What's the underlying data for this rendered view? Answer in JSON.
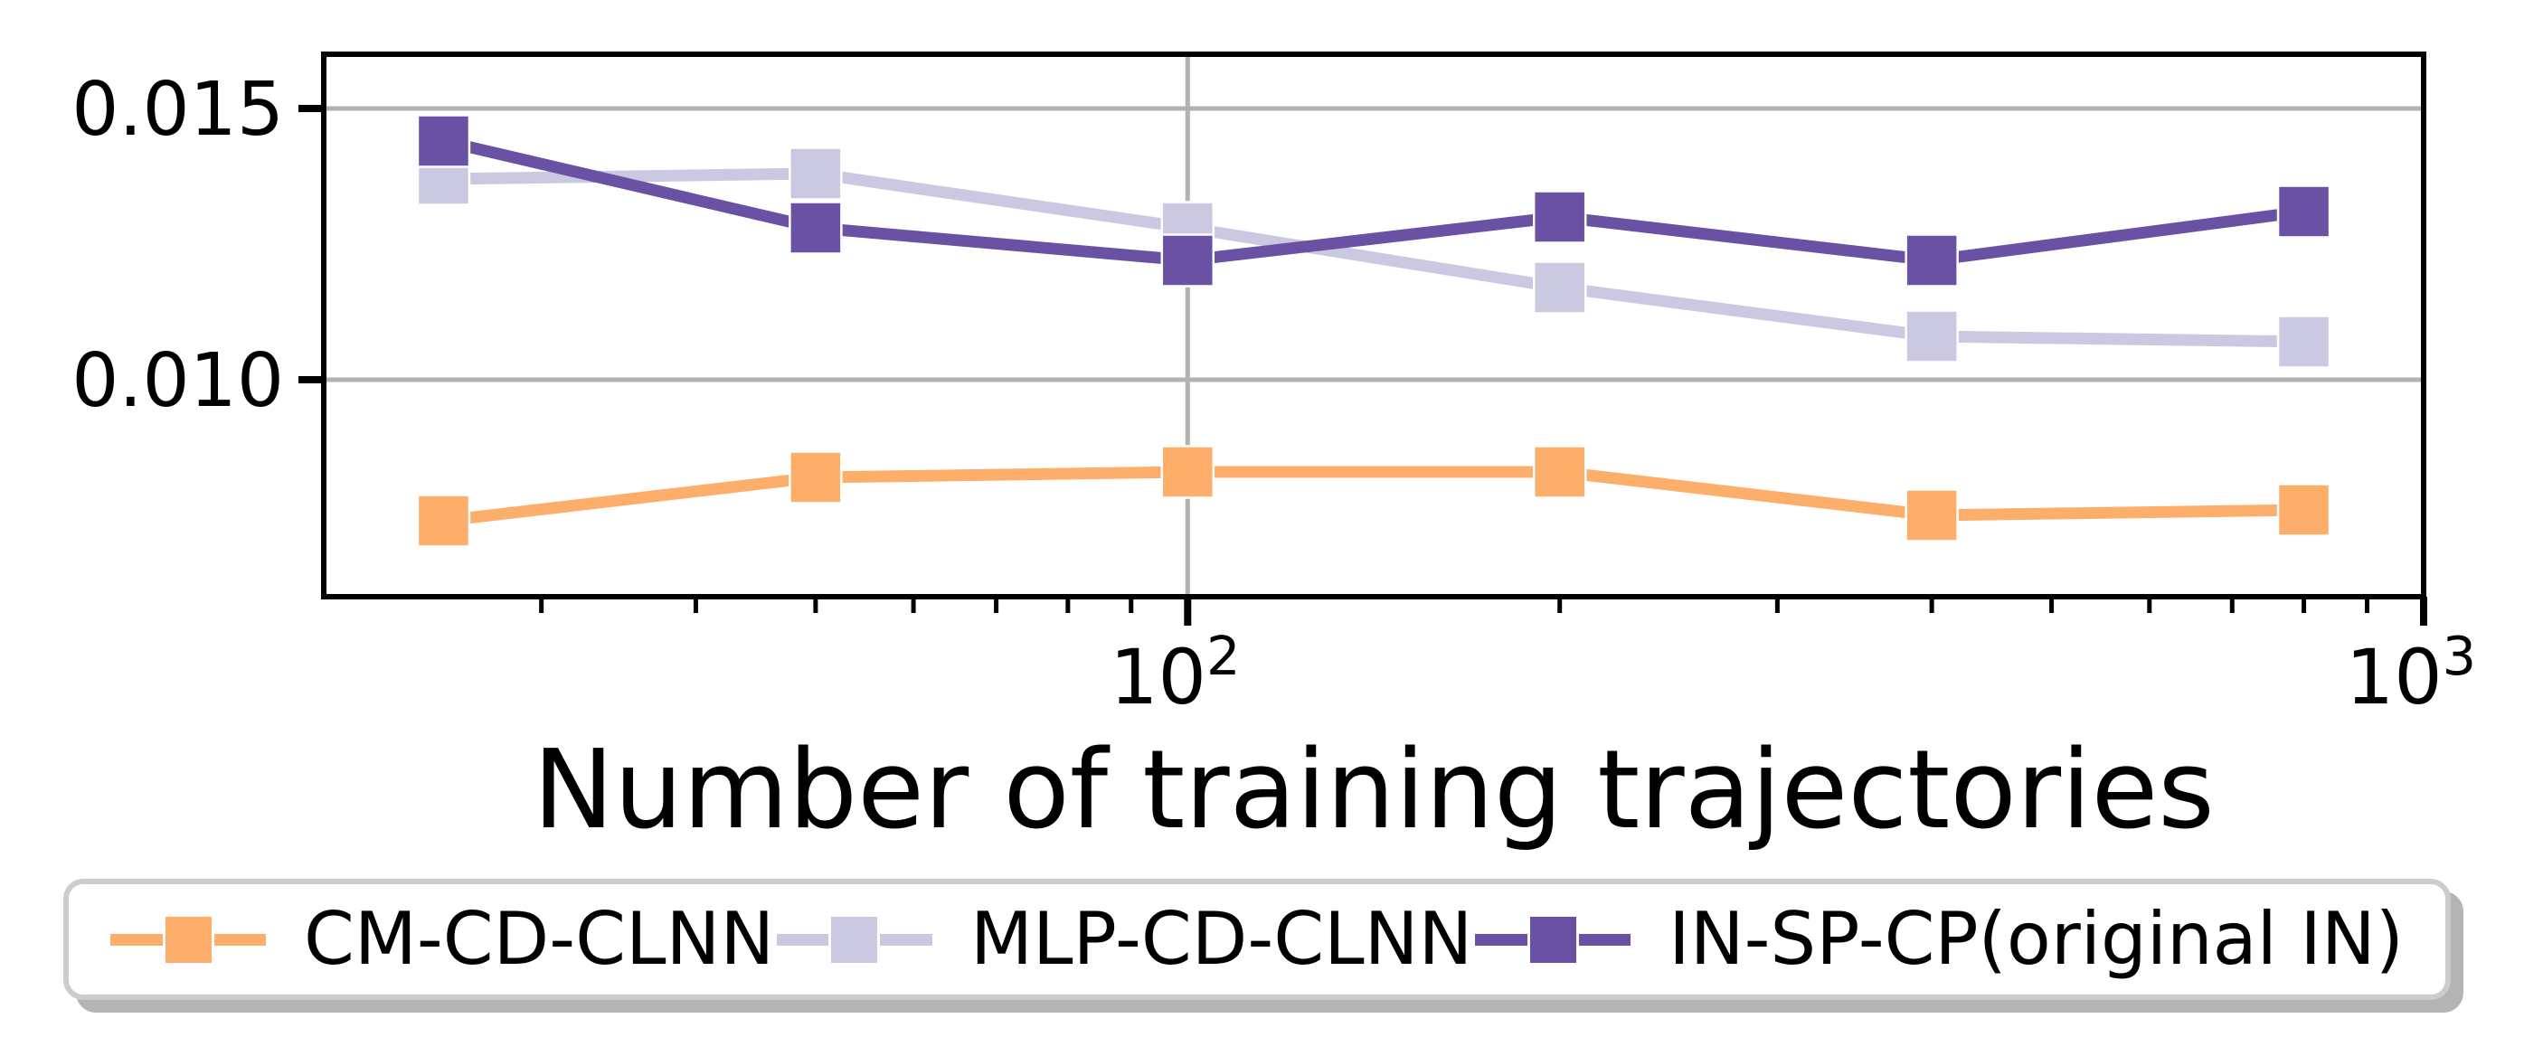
{
  "chart_data": {
    "type": "line",
    "xscale": "log",
    "x": [
      25,
      50,
      100,
      200,
      400,
      800
    ],
    "series": [
      {
        "name": "CM-CD-CLNN",
        "color": "#FDAE6B",
        "values": [
          0.0074,
          0.0082,
          0.0083,
          0.0083,
          0.0075,
          0.0076
        ]
      },
      {
        "name": "MLP-CD-CLNN",
        "color": "#CBC9E2",
        "values": [
          0.0137,
          0.0138,
          0.0128,
          0.0117,
          0.0108,
          0.0107
        ]
      },
      {
        "name": "IN-SP-CP(original IN)",
        "color": "#6A51A3",
        "values": [
          0.0144,
          0.0128,
          0.0122,
          0.013,
          0.0122,
          0.0131
        ]
      }
    ],
    "title": "",
    "xlabel": "Number of training trajectories",
    "ylabel": "",
    "xlim": [
      20,
      1000
    ],
    "ylim": [
      0.006,
      0.016
    ],
    "yticks": [
      {
        "value": 0.015,
        "label": "0.015"
      },
      {
        "value": 0.01,
        "label": "0.010"
      }
    ],
    "xticks": [
      {
        "value": 100,
        "base": "10",
        "exp": "2"
      },
      {
        "value": 1000,
        "base": "10",
        "exp": "3"
      }
    ],
    "xminorticks": [
      30,
      40,
      50,
      60,
      70,
      80,
      90,
      200,
      300,
      400,
      500,
      600,
      700,
      800,
      900
    ],
    "grid": true,
    "grid_color": "#b2b2b2",
    "spine_color": "#000000",
    "legend_position": "bottom",
    "marker": "square",
    "marker_size": 57,
    "line_width": 13
  },
  "layout_note": "single matplotlib-style line chart, white background, legend row below x-axis label"
}
